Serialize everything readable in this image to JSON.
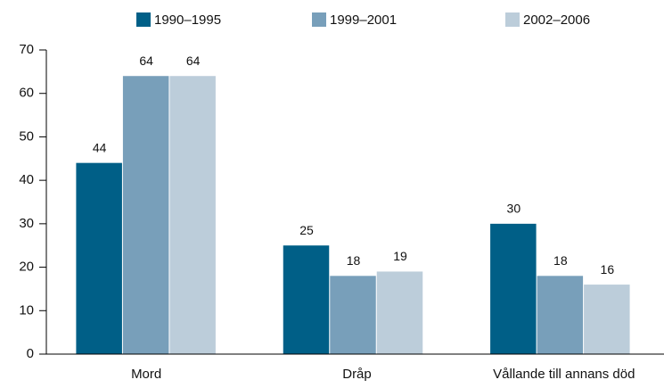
{
  "chart_data": {
    "type": "bar",
    "categories": [
      "Mord",
      "Dråp",
      "Vållande till annans död"
    ],
    "series": [
      {
        "name": "1990–1995",
        "color": "#005f87",
        "values": [
          44,
          25,
          30
        ]
      },
      {
        "name": "1999–2001",
        "color": "#789fba",
        "values": [
          64,
          18,
          18
        ]
      },
      {
        "name": "2002–2006",
        "color": "#bccdda",
        "values": [
          64,
          19,
          16
        ]
      }
    ],
    "ylim": [
      0,
      70
    ],
    "yticks": [
      0,
      10,
      20,
      30,
      40,
      50,
      60,
      70
    ],
    "legend": "top"
  }
}
